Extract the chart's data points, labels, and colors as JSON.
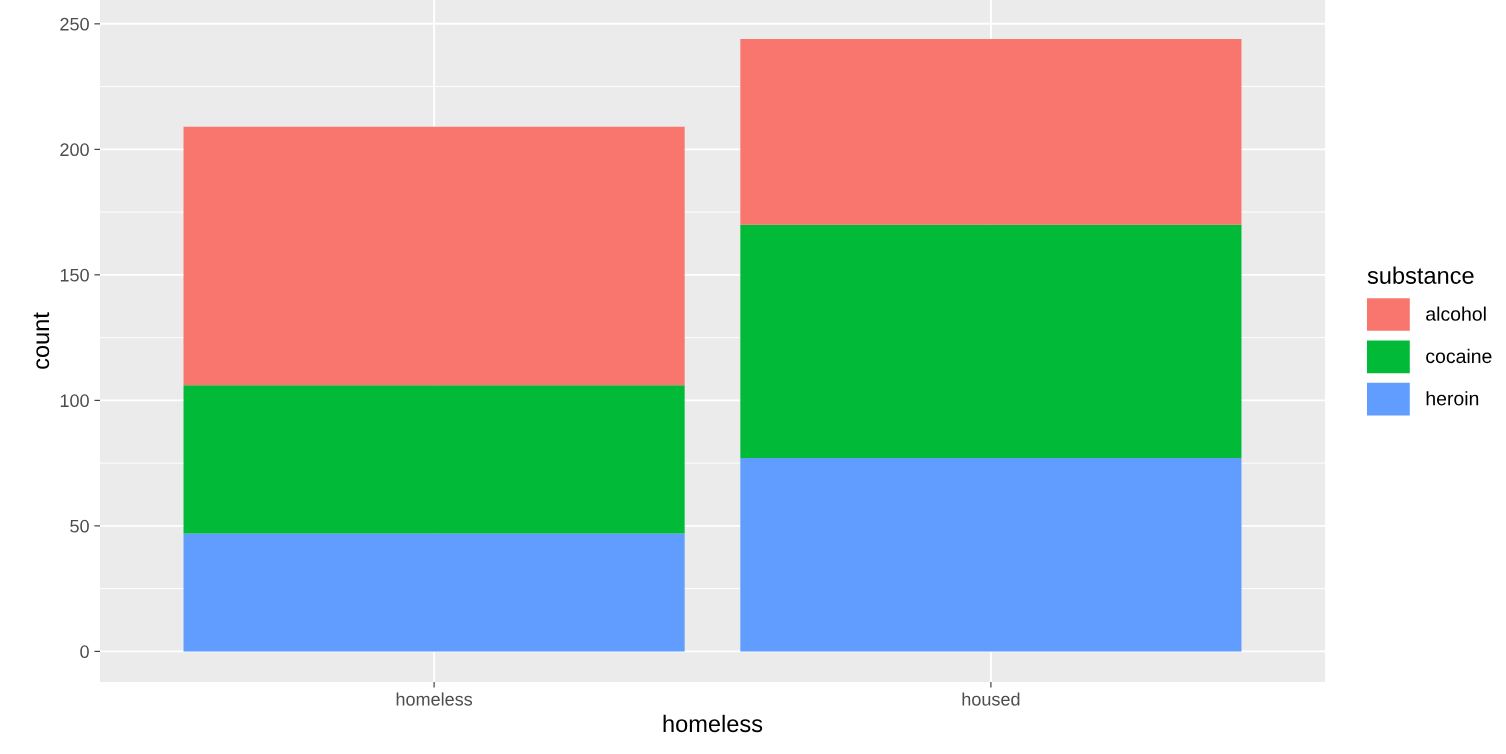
{
  "chart_data": {
    "type": "bar",
    "xlabel": "homeless",
    "ylabel": "count",
    "legend_title": "substance",
    "categories": [
      "homeless",
      "housed"
    ],
    "stacked": true,
    "series": [
      {
        "name": "heroin",
        "color": "#619cff",
        "values": [
          47,
          77
        ]
      },
      {
        "name": "cocaine",
        "color": "#00ba38",
        "values": [
          59,
          93
        ]
      },
      {
        "name": "alcohol",
        "color": "#f8766d",
        "values": [
          103,
          74
        ]
      }
    ],
    "ylim": [
      -12.2,
      259.5
    ],
    "yticks": [
      0,
      50,
      100,
      150,
      200,
      250
    ],
    "grid": true,
    "legend": "right"
  }
}
